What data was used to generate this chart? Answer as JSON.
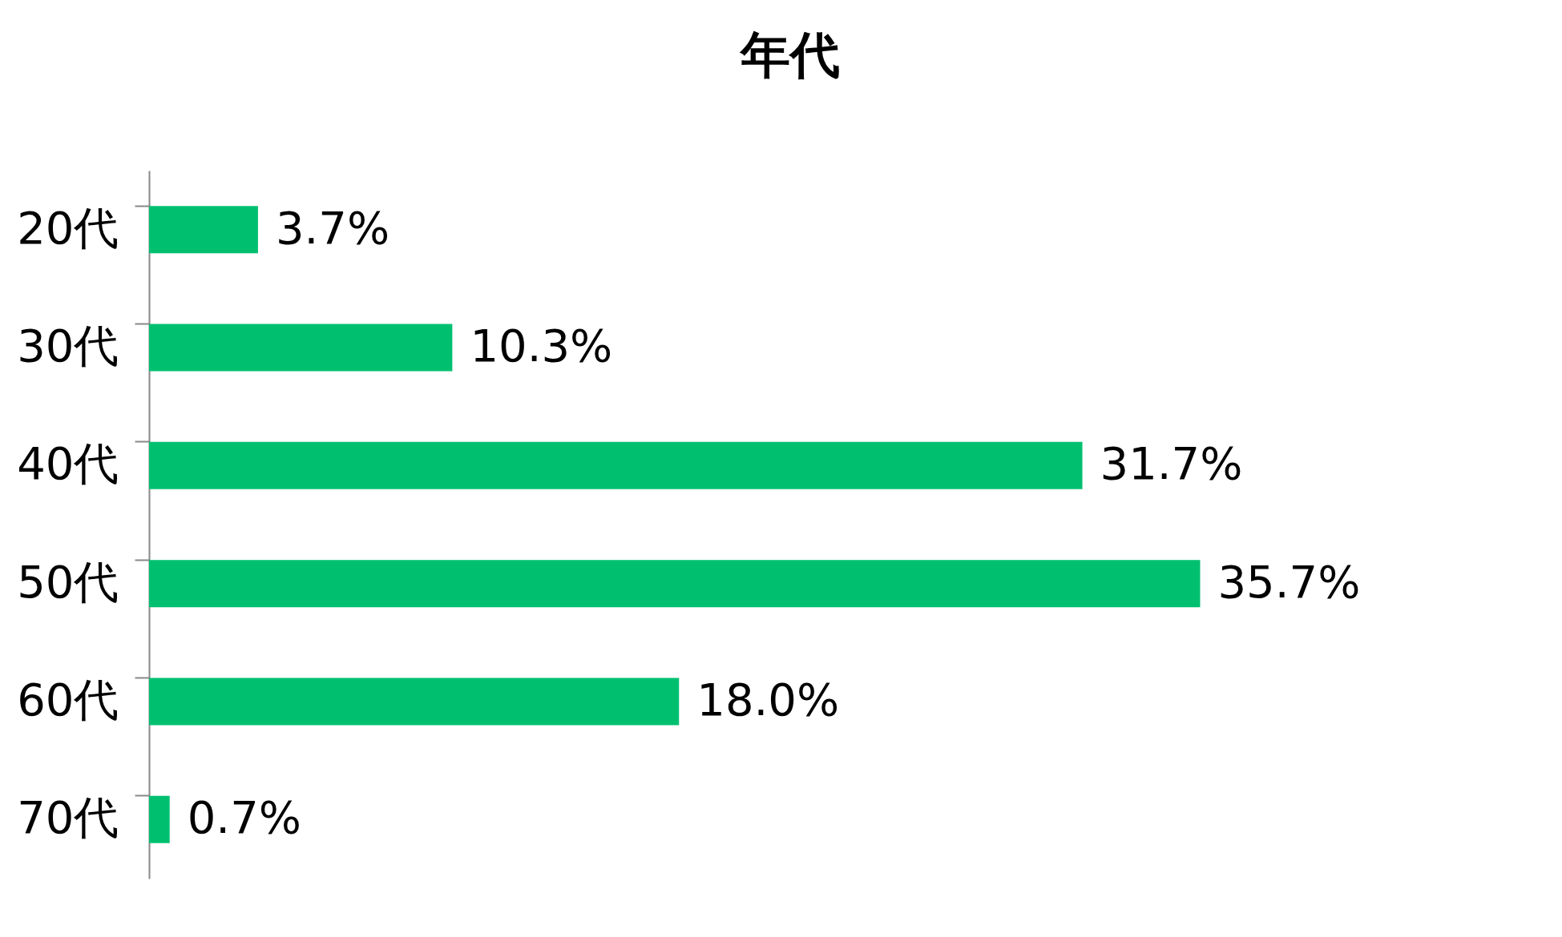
{
  "chart_data": {
    "type": "bar",
    "orientation": "horizontal",
    "title": "年代",
    "categories": [
      "20代",
      "30代",
      "40代",
      "50代",
      "60代",
      "70代"
    ],
    "values": [
      3.7,
      10.3,
      31.7,
      35.7,
      18.0,
      0.7
    ],
    "value_labels": [
      "3.7%",
      "10.3%",
      "31.7%",
      "35.7%",
      "18.0%",
      "0.7%"
    ],
    "color": "#00c070",
    "tick_labels": "y",
    "grid": false
  }
}
